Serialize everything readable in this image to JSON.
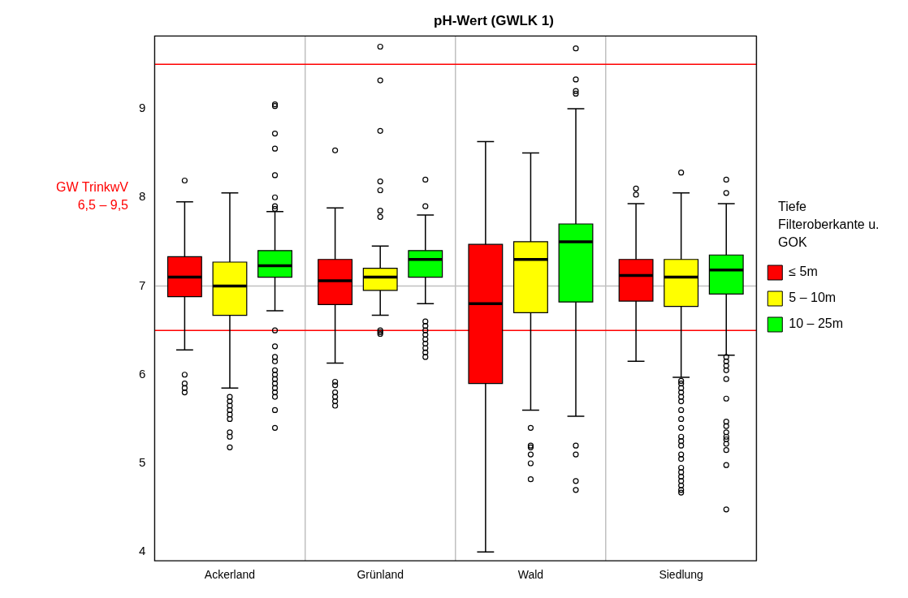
{
  "chart_data": {
    "type": "box",
    "title": "pH-Wert (GWLK 1)",
    "categories": [
      "Ackerland",
      "Grünland",
      "Wald",
      "Siedlung"
    ],
    "ylim": [
      3.9,
      9.82
    ],
    "yticks": [
      4,
      5,
      6,
      7,
      8,
      9
    ],
    "grid": "x",
    "legend": "right",
    "legend_title": "Tiefe Filteroberkante u. GOK",
    "annotations": [
      "GW TrinkwV 6,5 – 9,5"
    ],
    "ref_lines": [
      {
        "axis": "y",
        "value": 6.5,
        "color": "#ff0000"
      },
      {
        "axis": "y",
        "value": 9.5,
        "color": "#ff0000"
      },
      {
        "axis": "y",
        "value": 7,
        "color": "#c0c0c0"
      }
    ],
    "series": [
      {
        "name": "≤ 5m",
        "color": "#ff0000",
        "boxes": [
          {
            "low": 6.28,
            "q1": 6.88,
            "median": 7.1,
            "q3": 7.33,
            "high": 7.95,
            "outliers": [
              8.19,
              6.0,
              5.9,
              5.85,
              5.8
            ]
          },
          {
            "low": 6.13,
            "q1": 6.79,
            "median": 7.06,
            "q3": 7.3,
            "high": 7.88,
            "outliers": [
              8.53,
              5.92,
              5.88,
              5.8,
              5.75,
              5.7,
              5.65
            ]
          },
          {
            "low": 4.0,
            "q1": 5.9,
            "median": 6.8,
            "q3": 7.47,
            "high": 8.63
          },
          {
            "low": 6.15,
            "q1": 6.83,
            "median": 7.12,
            "q3": 7.3,
            "high": 7.93,
            "outliers": [
              8.1,
              8.03
            ]
          }
        ]
      },
      {
        "name": "5 – 10m",
        "color": "#ffff00",
        "boxes": [
          {
            "low": 5.85,
            "q1": 6.67,
            "median": 7.0,
            "q3": 7.27,
            "high": 8.05,
            "outliers": [
              5.75,
              5.7,
              5.65,
              5.6,
              5.55,
              5.5,
              5.35,
              5.3,
              5.18
            ]
          },
          {
            "low": 6.67,
            "q1": 6.95,
            "median": 7.1,
            "q3": 7.2,
            "high": 7.45,
            "outliers": [
              9.7,
              9.32,
              8.75,
              8.18,
              8.08,
              7.85,
              7.78,
              6.5,
              6.48,
              6.46
            ]
          },
          {
            "low": 5.6,
            "q1": 6.7,
            "median": 7.3,
            "q3": 7.5,
            "high": 8.5,
            "outliers": [
              5.4,
              5.2,
              5.18,
              5.1,
              5.0,
              4.82
            ]
          },
          {
            "low": 5.97,
            "q1": 6.77,
            "median": 7.1,
            "q3": 7.3,
            "high": 8.05,
            "outliers": [
              8.28,
              5.93,
              5.9,
              5.85,
              5.8,
              5.75,
              5.7,
              5.6,
              5.5,
              5.4,
              5.3,
              5.25,
              5.2,
              5.1,
              5.05,
              4.95,
              4.9,
              4.85,
              4.8,
              4.75,
              4.7,
              4.67
            ]
          }
        ]
      },
      {
        "name": "10 – 25m",
        "color": "#00ff00",
        "boxes": [
          {
            "low": 6.72,
            "q1": 7.1,
            "median": 7.23,
            "q3": 7.4,
            "high": 7.84,
            "outliers": [
              9.05,
              9.03,
              8.72,
              8.55,
              8.25,
              8.0,
              7.9,
              7.87,
              6.5,
              6.32,
              6.2,
              6.15,
              6.05,
              6.0,
              5.95,
              5.9,
              5.85,
              5.8,
              5.75,
              5.6,
              5.4
            ]
          },
          {
            "low": 6.8,
            "q1": 7.1,
            "median": 7.3,
            "q3": 7.4,
            "high": 7.8,
            "outliers": [
              8.2,
              7.9,
              6.6,
              6.55,
              6.5,
              6.45,
              6.4,
              6.35,
              6.3,
              6.25,
              6.2
            ]
          },
          {
            "low": 5.53,
            "q1": 6.82,
            "median": 7.5,
            "q3": 7.7,
            "high": 9.0,
            "outliers": [
              9.68,
              9.33,
              9.2,
              9.17,
              5.2,
              5.1,
              4.8,
              4.7
            ]
          },
          {
            "low": 6.22,
            "q1": 6.91,
            "median": 7.18,
            "q3": 7.35,
            "high": 7.93,
            "outliers": [
              8.2,
              8.05,
              6.2,
              6.15,
              6.1,
              6.05,
              5.95,
              5.73,
              5.47,
              5.42,
              5.35,
              5.3,
              5.27,
              5.22,
              5.15,
              4.98,
              4.48
            ]
          }
        ]
      }
    ]
  }
}
